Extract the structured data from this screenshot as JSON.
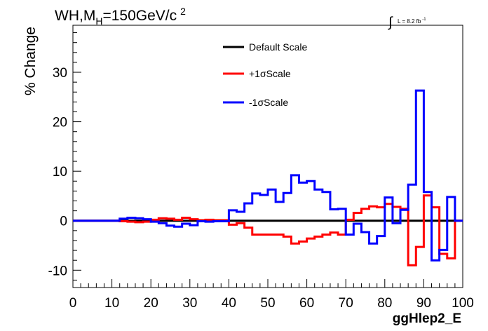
{
  "chart_data": {
    "type": "line",
    "title": {
      "main": "WH,M",
      "subscript": "H",
      "rest": "=150GeV/c",
      "superscript": "2"
    },
    "luminosity": {
      "prefix": "L = 8.2 fb",
      "superscript": "-1"
    },
    "xlabel": "ggHlep2_E",
    "ylabel": "% Change",
    "xlim": [
      0,
      100
    ],
    "ylim": [
      -13.5,
      39.5
    ],
    "xticks": [
      0,
      10,
      20,
      30,
      40,
      50,
      60,
      70,
      80,
      90,
      100
    ],
    "xtick_labels": [
      "0",
      "10",
      "20",
      "30",
      "40",
      "50",
      "60",
      "70",
      "80",
      "90",
      "100"
    ],
    "yticks": [
      -10,
      0,
      10,
      20,
      30
    ],
    "ytick_labels": [
      "-10",
      "0",
      "10",
      "20",
      "30"
    ],
    "legend": {
      "placement": "top-center",
      "entries": [
        "Default Scale",
        "+1σScale",
        "-1σScale"
      ]
    },
    "bin_edges": [
      0,
      2,
      4,
      6,
      8,
      10,
      12,
      14,
      16,
      18,
      20,
      22,
      24,
      26,
      28,
      30,
      32,
      34,
      36,
      38,
      40,
      42,
      44,
      46,
      48,
      50,
      52,
      54,
      56,
      58,
      60,
      62,
      64,
      66,
      68,
      70,
      72,
      74,
      76,
      78,
      80,
      82,
      84,
      86,
      88,
      90,
      92,
      94,
      96,
      98,
      100
    ],
    "series": [
      {
        "name": "Default Scale",
        "color": "#000000",
        "values": [
          0,
          0,
          0,
          0,
          0,
          0,
          0,
          0,
          0,
          0,
          0,
          0,
          0,
          0,
          0,
          0,
          0,
          0,
          0,
          0,
          0,
          0,
          0,
          0,
          0,
          0,
          0,
          0,
          0,
          0,
          0,
          0,
          0,
          0,
          0,
          0,
          0,
          0,
          0,
          0,
          0,
          0,
          0,
          0,
          0,
          0,
          0,
          0,
          0,
          0
        ]
      },
      {
        "name": "+1σScale",
        "color": "#ff0000",
        "values": [
          0,
          0,
          0,
          0,
          0,
          0,
          -0.1,
          -0.2,
          -0.3,
          -0.2,
          0.2,
          0.5,
          0.4,
          0.2,
          0.6,
          0.3,
          0.1,
          0.2,
          0.1,
          0.1,
          -0.8,
          -0.5,
          -1.4,
          -2.8,
          -2.8,
          -2.8,
          -2.8,
          -3.2,
          -4.6,
          -4.2,
          -3.6,
          -3.2,
          -2.8,
          -2.4,
          -2.8,
          0.2,
          1.6,
          2.4,
          2.9,
          2.7,
          3.4,
          2.8,
          2.4,
          -9.0,
          -5.3,
          5.1,
          2.7,
          -6.7,
          -7.6,
          0
        ]
      },
      {
        "name": "-1σScale",
        "color": "#0000ff",
        "values": [
          0,
          0,
          0,
          0,
          0,
          0,
          0.4,
          0.6,
          0.5,
          0.3,
          -0.2,
          -0.5,
          -1.0,
          -1.2,
          -0.6,
          -0.9,
          -0.1,
          -0.2,
          -0.1,
          -0.1,
          2.1,
          1.8,
          3.5,
          5.5,
          5.2,
          6.3,
          3.8,
          5.6,
          9.2,
          7.7,
          8.0,
          6.3,
          5.8,
          2.3,
          2.4,
          -2.8,
          -0.6,
          -2.3,
          -4.6,
          -3.1,
          4.7,
          -0.5,
          2.2,
          7.3,
          26.3,
          5.8,
          -8.0,
          -5.9,
          4.8,
          0
        ]
      }
    ],
    "grid": false
  }
}
